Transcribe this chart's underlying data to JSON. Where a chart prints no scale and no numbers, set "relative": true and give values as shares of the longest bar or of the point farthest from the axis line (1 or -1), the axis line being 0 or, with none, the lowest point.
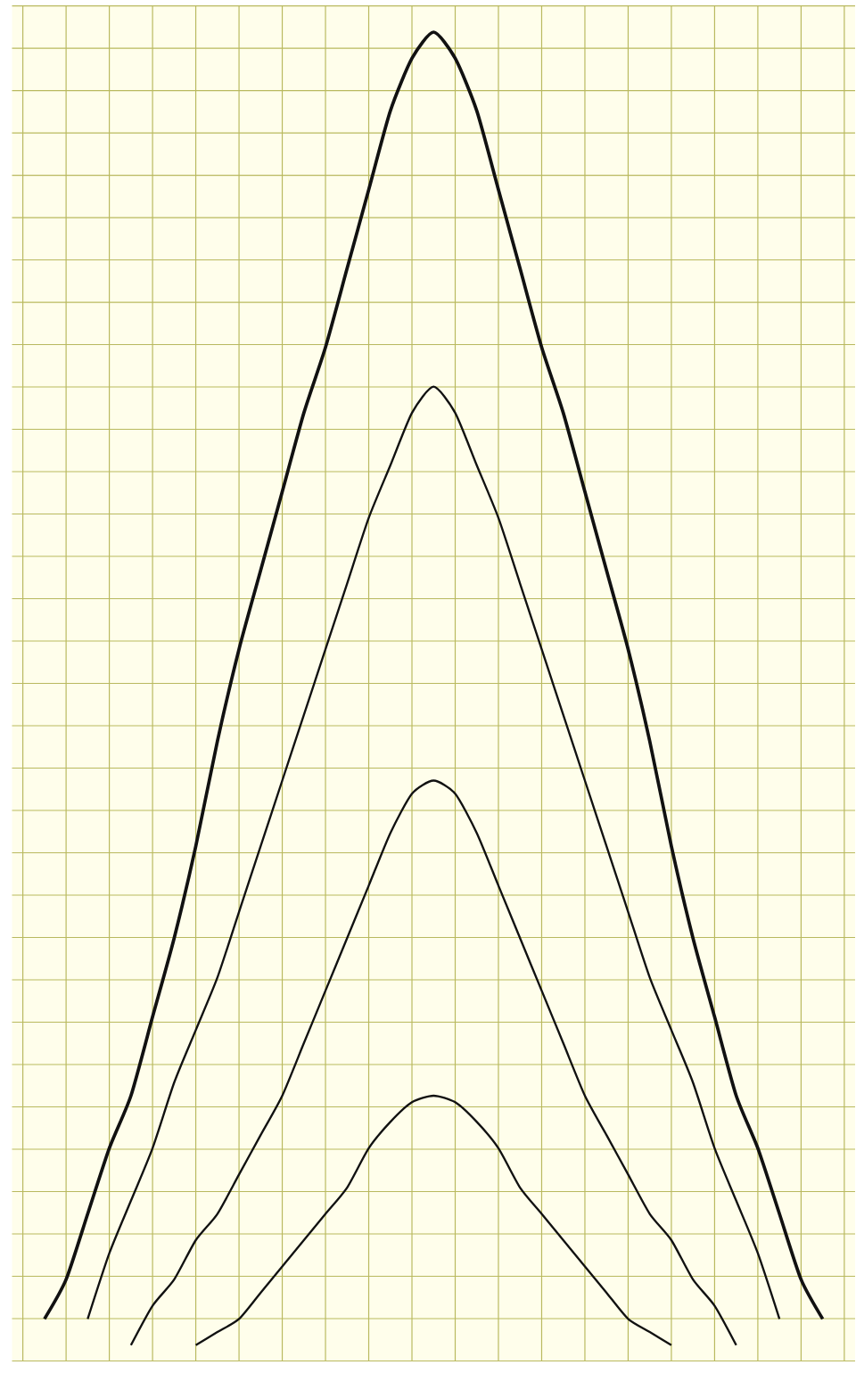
{
  "chart_data": {
    "type": "line",
    "relative": true,
    "grid": true,
    "marker": "none",
    "line_style": "solid",
    "categories": [
      null,
      null,
      null,
      null,
      null,
      null,
      null,
      null,
      null,
      null,
      null,
      null,
      null,
      null,
      null,
      null,
      null,
      null,
      null,
      null,
      null,
      null,
      null,
      null,
      null,
      null,
      null,
      null,
      null,
      null,
      null,
      null,
      null,
      null,
      null,
      null,
      null,
      null,
      null
    ],
    "series": [
      {
        "color": "#111111",
        "values": [
          null,
          0.02,
          0.05,
          0.1,
          0.15,
          0.19,
          0.25,
          0.31,
          0.38,
          0.46,
          0.53,
          0.59,
          0.65,
          0.71,
          0.76,
          0.82,
          0.88,
          0.94,
          0.98,
          1,
          0.98,
          0.94,
          0.88,
          0.82,
          0.76,
          0.71,
          0.65,
          0.59,
          0.53,
          0.46,
          0.38,
          0.31,
          0.25,
          0.19,
          0.15,
          0.1,
          0.05,
          0.02,
          null
        ]
      },
      {
        "color": "#111111",
        "values": [
          null,
          null,
          null,
          0.02,
          0.07,
          0.11,
          0.15,
          0.2,
          0.24,
          0.28,
          0.33,
          0.38,
          0.43,
          0.48,
          0.53,
          0.58,
          0.63,
          0.67,
          0.71,
          0.73,
          0.71,
          0.67,
          0.63,
          0.58,
          0.53,
          0.48,
          0.43,
          0.38,
          0.33,
          0.28,
          0.24,
          0.2,
          0.15,
          0.11,
          0.07,
          0.02,
          null,
          null,
          null
        ]
      },
      {
        "color": "#111111",
        "values": [
          null,
          null,
          null,
          null,
          null,
          0,
          0.03,
          0.05,
          0.08,
          0.1,
          0.13,
          0.16,
          0.19,
          0.23,
          0.27,
          0.31,
          0.35,
          0.39,
          0.42,
          0.43,
          0.42,
          0.39,
          0.35,
          0.31,
          0.27,
          0.23,
          0.19,
          0.16,
          0.13,
          0.1,
          0.08,
          0.05,
          0.03,
          0,
          null,
          null,
          null,
          null,
          null
        ]
      },
      {
        "color": "#111111",
        "values": [
          null,
          null,
          null,
          null,
          null,
          null,
          null,
          null,
          0,
          0.01,
          0.02,
          0.04,
          0.06,
          0.08,
          0.1,
          0.12,
          0.15,
          0.17,
          0.185,
          0.19,
          0.185,
          0.17,
          0.15,
          0.12,
          0.1,
          0.08,
          0.06,
          0.04,
          0.02,
          0.01,
          0,
          null,
          null,
          null,
          null,
          null,
          null,
          null,
          null
        ]
      }
    ]
  }
}
